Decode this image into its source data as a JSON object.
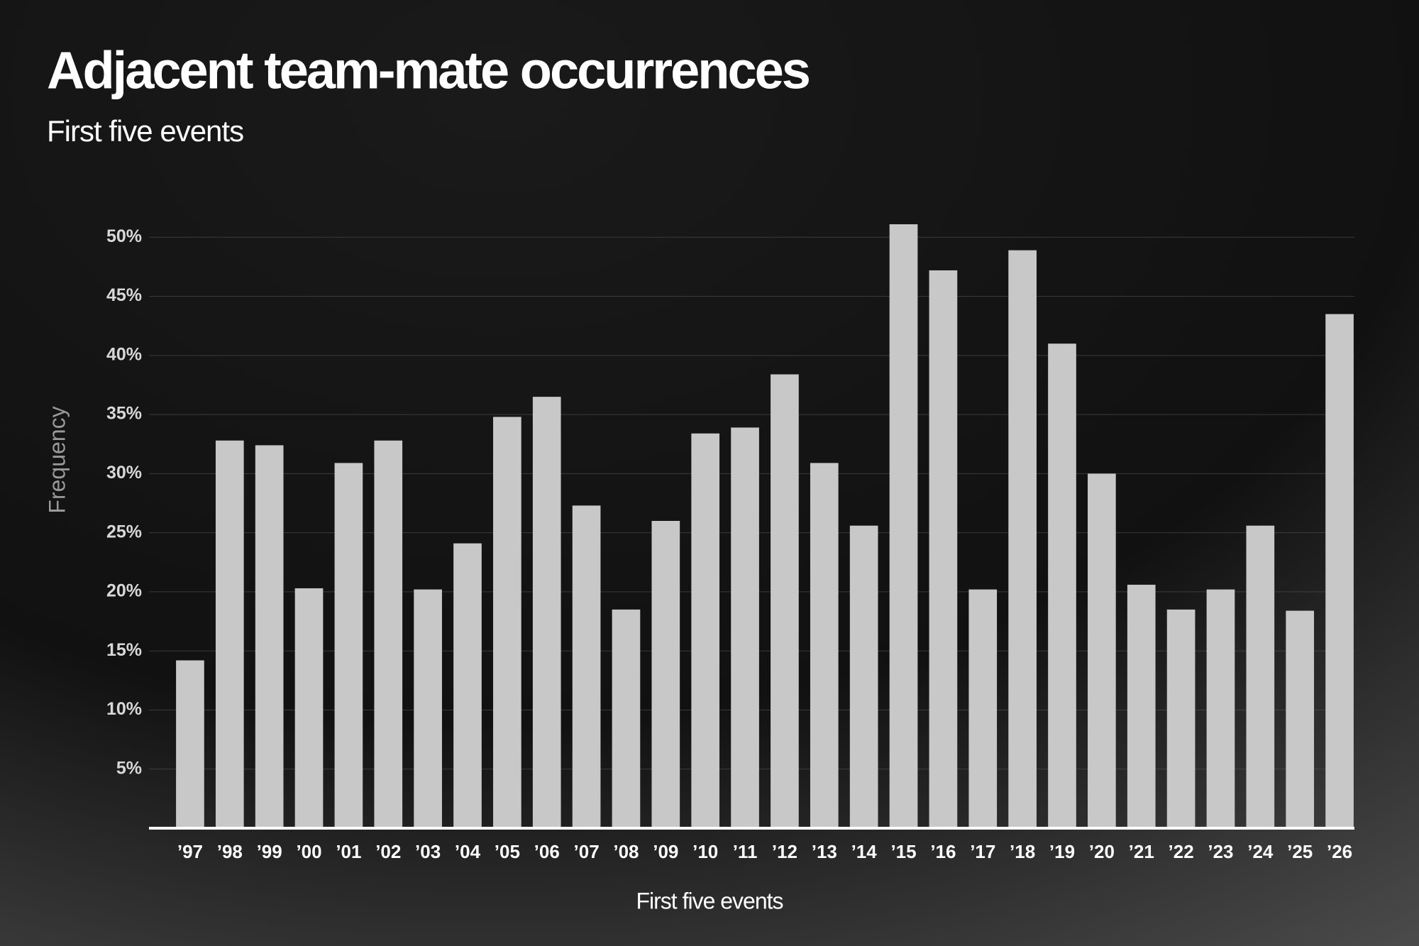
{
  "chart_data": {
    "type": "bar",
    "title": "Adjacent team-mate occurrences",
    "subtitle": "First five events",
    "x_label": "First five events",
    "y_label": "Frequency",
    "categories": [
      "’97",
      "’98",
      "’99",
      "’00",
      "’01",
      "’02",
      "’03",
      "’04",
      "’05",
      "’06",
      "’07",
      "’08",
      "’09",
      "’10",
      "’11",
      "’12",
      "’13",
      "’14",
      "’15",
      "’16",
      "’17",
      "’18",
      "’19",
      "’20",
      "’21",
      "’22",
      "’23",
      "’24",
      "’25",
      "’26"
    ],
    "values": [
      14.2,
      32.8,
      32.4,
      20.3,
      30.9,
      32.8,
      20.2,
      24.1,
      34.8,
      36.5,
      27.3,
      18.5,
      26.0,
      33.4,
      33.9,
      38.4,
      30.9,
      25.6,
      51.1,
      47.2,
      20.2,
      48.9,
      41.0,
      30.0,
      20.6,
      18.5,
      20.2,
      25.6,
      18.4,
      43.5
    ],
    "color": "#c8c8c8",
    "ylim": [
      0,
      52
    ],
    "yticks": [
      {
        "value": 5,
        "label": "5%"
      },
      {
        "value": 10,
        "label": "10%"
      },
      {
        "value": 15,
        "label": "15%"
      },
      {
        "value": 20,
        "label": "20%"
      },
      {
        "value": 25,
        "label": "25%"
      },
      {
        "value": 30,
        "label": "30%"
      },
      {
        "value": 35,
        "label": "35%"
      },
      {
        "value": 40,
        "label": "40%"
      },
      {
        "value": 45,
        "label": "45%"
      },
      {
        "value": 50,
        "label": "50%"
      }
    ],
    "grid": true
  }
}
